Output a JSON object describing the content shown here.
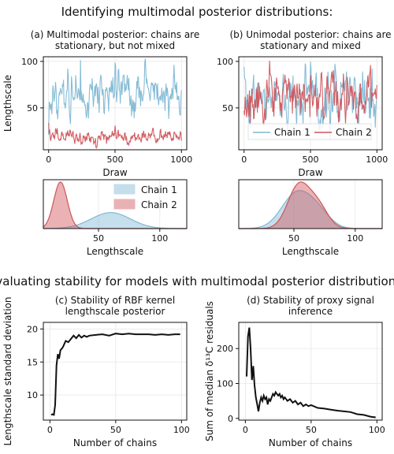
{
  "headers": {
    "top": "Identifying multimodal posterior distributions:",
    "bottom": "Evaluating stability for models with multimodal posterior distributions:"
  },
  "colors": {
    "chain1": "#7fb8d4",
    "chain2": "#d1545a",
    "black": "#111111"
  },
  "chart_data": [
    {
      "id": "a_trace",
      "type": "line",
      "title": [
        "(a) Multimodal posterior: chains are",
        "stationary, but not mixed"
      ],
      "xlabel": "Draw",
      "ylabel": "Lengthscale",
      "xlim": [
        -40,
        1040
      ],
      "ylim": [
        5,
        105
      ],
      "xticks": [
        0,
        500,
        1000
      ],
      "yticks": [
        50,
        100
      ],
      "series": [
        {
          "name": "Chain 1",
          "color_key": "chain1",
          "mean": 65,
          "amp": 12,
          "seed": 11
        },
        {
          "name": "Chain 2",
          "color_key": "chain2",
          "mean": 19,
          "amp": 4,
          "seed": 23
        }
      ]
    },
    {
      "id": "b_trace",
      "type": "line",
      "title": [
        "(b) Unimodal posterior: chains are",
        "stationary and mixed"
      ],
      "xlabel": "Draw",
      "ylabel": "",
      "xlim": [
        -40,
        1040
      ],
      "ylim": [
        5,
        105
      ],
      "xticks": [
        0,
        500,
        1000
      ],
      "yticks": [
        50,
        100
      ],
      "legend": "bottom-center",
      "series": [
        {
          "name": "Chain 1",
          "color_key": "chain1",
          "mean": 60,
          "amp": 14,
          "seed": 37
        },
        {
          "name": "Chain 2",
          "color_key": "chain2",
          "mean": 60,
          "amp": 14,
          "seed": 51
        }
      ]
    },
    {
      "id": "a_density",
      "type": "area",
      "xlabel": "Lengthscale",
      "xlim": [
        5,
        122
      ],
      "xticks": [
        50,
        100
      ],
      "legend": "top-right",
      "series": [
        {
          "name": "Chain 1",
          "color_key": "chain1",
          "components": [
            [
              60,
              16,
              1
            ]
          ]
        },
        {
          "name": "Chain 2",
          "color_key": "chain2",
          "components": [
            [
              19,
              5.5,
              1
            ]
          ]
        }
      ]
    },
    {
      "id": "b_density",
      "type": "area",
      "xlabel": "Lengthscale",
      "xlim": [
        5,
        122
      ],
      "xticks": [
        50,
        100
      ],
      "series": [
        {
          "name": "Chain 1",
          "color_key": "chain1",
          "components": [
            [
              52,
              12,
              0.75
            ],
            [
              70,
              10,
              0.25
            ]
          ]
        },
        {
          "name": "Chain 2",
          "color_key": "chain2",
          "components": [
            [
              54,
              9,
              0.7
            ],
            [
              70,
              8,
              0.3
            ]
          ]
        }
      ]
    },
    {
      "id": "c_stability",
      "type": "line",
      "title": [
        "(c) Stability of RBF kernel",
        "lengthscale posterior"
      ],
      "xlabel": "Number of chains",
      "ylabel": "Lengthscale standard deviation",
      "xlim": [
        -5,
        104
      ],
      "ylim": [
        6.2,
        21
      ],
      "xticks": [
        0,
        50,
        100
      ],
      "yticks": [
        10,
        15,
        20
      ],
      "series": [
        {
          "name": "",
          "color_key": "black",
          "x": [
            1,
            2,
            3,
            4,
            5,
            6,
            7,
            8,
            9,
            10,
            12,
            14,
            16,
            18,
            20,
            22,
            24,
            26,
            28,
            30,
            35,
            40,
            45,
            50,
            55,
            60,
            65,
            70,
            75,
            80,
            85,
            90,
            95,
            99
          ],
          "y": [
            7.0,
            7.1,
            7.0,
            8.5,
            14.5,
            16.2,
            15.5,
            16.8,
            17.0,
            17.3,
            18.2,
            18.0,
            18.5,
            19.0,
            18.6,
            19.1,
            18.7,
            19.0,
            18.8,
            19.0,
            19.1,
            19.2,
            19.0,
            19.3,
            19.2,
            19.3,
            19.2,
            19.2,
            19.2,
            19.1,
            19.2,
            19.1,
            19.2,
            19.2
          ]
        }
      ]
    },
    {
      "id": "d_stability",
      "type": "line",
      "title": [
        "(d) Stability of proxy signal",
        "inference"
      ],
      "xlabel": "Number of chains",
      "ylabel": "Sum of median δ¹³C residuals",
      "xlim": [
        -5,
        104
      ],
      "ylim": [
        -5,
        275
      ],
      "xticks": [
        0,
        50,
        100
      ],
      "yticks": [
        0,
        100,
        200
      ],
      "series": [
        {
          "name": "",
          "color_key": "black",
          "x": [
            1,
            2,
            3,
            4,
            5,
            6,
            7,
            8,
            9,
            10,
            11,
            12,
            13,
            14,
            15,
            16,
            17,
            18,
            19,
            20,
            21,
            22,
            23,
            24,
            25,
            26,
            27,
            28,
            29,
            30,
            32,
            34,
            36,
            38,
            40,
            42,
            44,
            46,
            48,
            50,
            55,
            60,
            65,
            70,
            75,
            80,
            85,
            90,
            95,
            99
          ],
          "y": [
            120,
            235,
            260,
            200,
            110,
            150,
            95,
            60,
            40,
            20,
            45,
            60,
            50,
            65,
            55,
            60,
            40,
            55,
            50,
            60,
            70,
            65,
            75,
            70,
            65,
            70,
            60,
            65,
            55,
            60,
            50,
            55,
            45,
            50,
            40,
            45,
            35,
            40,
            35,
            38,
            30,
            28,
            25,
            22,
            20,
            18,
            12,
            10,
            5,
            3
          ]
        }
      ]
    }
  ]
}
